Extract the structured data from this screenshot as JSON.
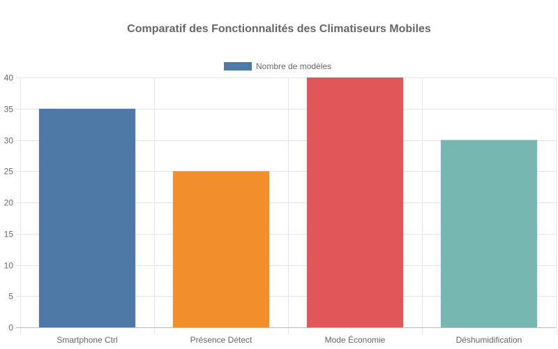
{
  "chart_data": {
    "type": "bar",
    "title": "Comparatif des Fonctionnalités des Climatiseurs Mobiles",
    "categories": [
      "Smartphone Ctrl",
      "Présence Détect",
      "Mode Économie",
      "Déshumidification"
    ],
    "series": [
      {
        "name": "Nombre de modèles",
        "values": [
          35,
          25,
          40,
          30
        ]
      }
    ],
    "bar_colors": [
      "#4e79a7",
      "#f28e2b",
      "#e15759",
      "#76b7b2"
    ],
    "legend_color": "#4e79a7",
    "ylim": [
      0,
      40
    ],
    "y_ticks": [
      0,
      5,
      10,
      15,
      20,
      25,
      30,
      35,
      40
    ],
    "grid": true,
    "legend_position": "top"
  }
}
